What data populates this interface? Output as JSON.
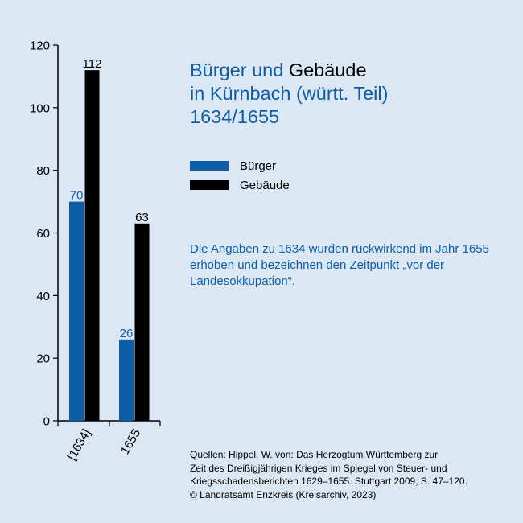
{
  "title": {
    "part1": "Bürger und ",
    "part2": "Gebäude",
    "line2": "in Kürnbach (württ. Teil)",
    "line3": "1634/1655"
  },
  "note": "Die Angaben zu 1634 wurden rückwirkend im Jahr 1655 erhoben und bezeichnen den Zeitpunkt „vor der Landesokkupation“.",
  "source": {
    "line1": "Quellen: Hippel, W. von: Das Herzogtum Württemberg zur",
    "line2": "Zeit des Dreißigjährigen Krieges im Spiegel von Steuer- und",
    "line3": "Kriegsschadensberichten 1629–1655. Stuttgart 2009, S. 47–120.",
    "line4": "© Landratsamt Enzkreis (Kreisarchiv, 2023)"
  },
  "colors": {
    "background": "#dbe7f3",
    "buerger": "#0d5ea6",
    "gebaeude": "#000000"
  },
  "chart_data": {
    "type": "bar",
    "title": "Bürger und Gebäude in Kürnbach (württ. Teil) 1634/1655",
    "categories": [
      "[1634]",
      "1655"
    ],
    "series": [
      {
        "name": "Bürger",
        "color": "#0d5ea6",
        "values": [
          70,
          26
        ]
      },
      {
        "name": "Gebäude",
        "color": "#000000",
        "values": [
          112,
          63
        ]
      }
    ],
    "ylim": [
      0,
      120
    ],
    "yticks": [
      0,
      20,
      40,
      60,
      80,
      100,
      120
    ],
    "xlabel": "",
    "ylabel": "",
    "grid": false,
    "legend": "right",
    "data_labels": true
  }
}
